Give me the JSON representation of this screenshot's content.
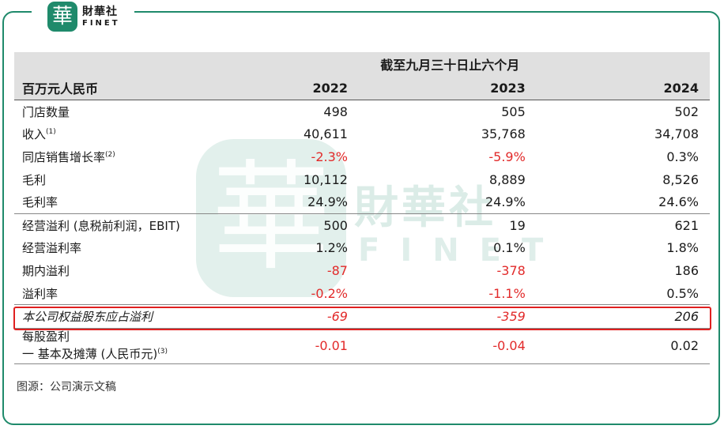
{
  "brand": {
    "seal_char": "華",
    "name_cn": "財華社",
    "name_en": "FINET"
  },
  "header": {
    "period": "截至九月三十日止六个月",
    "unit": "百万元人民币",
    "years": [
      "2022",
      "2023",
      "2024"
    ]
  },
  "rows": [
    {
      "label": "门店数量",
      "note": "",
      "values": [
        "498",
        "505",
        "502"
      ]
    },
    {
      "label": "收入",
      "note": "(1)",
      "values": [
        "40,611",
        "35,768",
        "34,708"
      ]
    },
    {
      "label": "同店销售增长率",
      "note": "(2)",
      "values": [
        "-2.3%",
        "-5.9%",
        "0.3%"
      ]
    },
    {
      "label": "毛利",
      "note": "",
      "values": [
        "10,112",
        "8,889",
        "8,526"
      ]
    },
    {
      "label": "毛利率",
      "note": "",
      "values": [
        "24.9%",
        "24.9%",
        "24.6%"
      ]
    },
    {
      "label": "经营溢利 (息税前利润，EBIT)",
      "note": "",
      "values": [
        "500",
        "19",
        "621"
      ]
    },
    {
      "label": "经营溢利率",
      "note": "",
      "values": [
        "1.2%",
        "0.1%",
        "1.8%"
      ]
    },
    {
      "label": "期内溢利",
      "note": "",
      "values": [
        "-87",
        "-378",
        "186"
      ]
    },
    {
      "label": "溢利率",
      "note": "",
      "values": [
        "-0.2%",
        "-1.1%",
        "0.5%"
      ]
    },
    {
      "label": "本公司权益股东应占溢利",
      "note": "",
      "values": [
        "-69",
        "-359",
        "206"
      ]
    },
    {
      "label": "每股盈利",
      "label2": "一 基本及摊薄 (人民币元)",
      "note": "(3)",
      "values": [
        "-0.01",
        "-0.04",
        "0.02"
      ]
    }
  ],
  "source": "图源：公司演示文稿",
  "colors": {
    "accent": "#1f8a6b",
    "negative": "#e22a2a",
    "highlight_box": "#e02020",
    "header_bg": "#e0e0e0"
  }
}
